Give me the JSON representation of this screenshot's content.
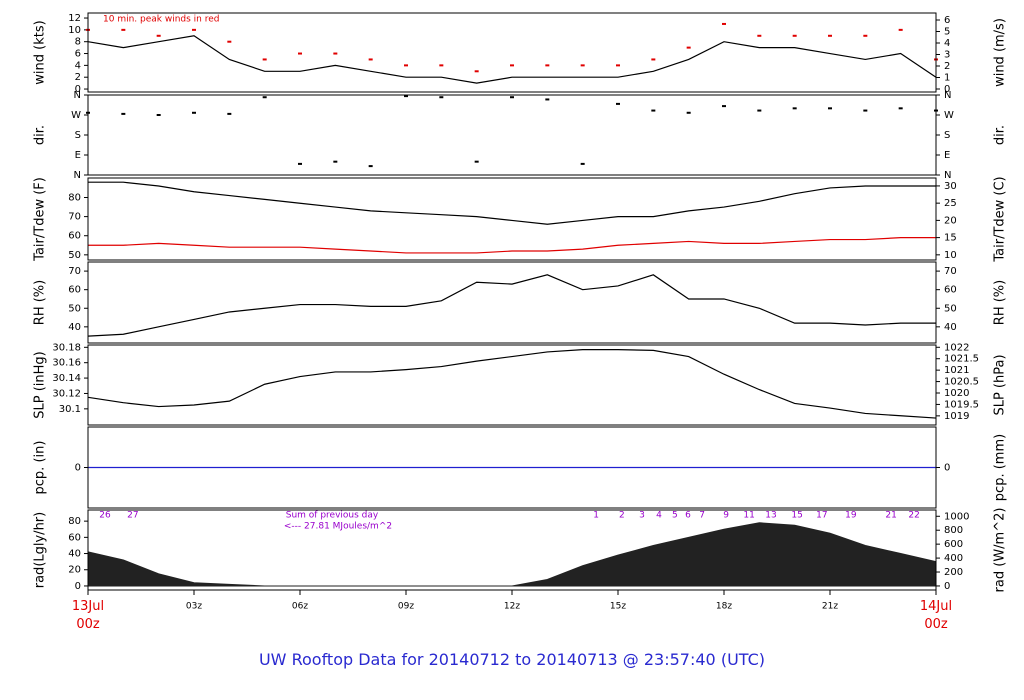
{
  "title": "UW Rooftop Data for 20140712  to  20140713 @ 23:57:40  (UTC)",
  "chart_data": [
    {
      "type": "line",
      "ylabel": "wind (kts)",
      "y2label": "wind (m/s)",
      "annotation": "10 min. peak winds in red",
      "xlim": [
        0,
        24
      ],
      "ylim": [
        -0.5,
        12.85
      ],
      "yticks": [
        0,
        2,
        4,
        6,
        8,
        10,
        12
      ],
      "y2lim": [
        -0.26,
        6.61
      ],
      "y2ticks": [
        0,
        1,
        2,
        3,
        4,
        5,
        6
      ],
      "x": [
        0,
        1,
        2,
        3,
        4,
        5,
        6,
        7,
        8,
        9,
        10,
        11,
        12,
        13,
        14,
        15,
        16,
        17,
        18,
        19,
        20,
        21,
        22,
        23,
        24
      ],
      "series": [
        {
          "name": "wind",
          "color": "#000000",
          "mode": "line",
          "values": [
            8,
            7,
            8,
            9,
            5,
            3,
            3,
            4,
            3,
            2,
            2,
            1,
            2,
            2,
            2,
            2,
            3,
            5,
            8,
            7,
            7,
            6,
            5,
            6,
            2
          ]
        },
        {
          "name": "peak",
          "color": "#e00000",
          "mode": "markers",
          "values": [
            10,
            10,
            9,
            10,
            8,
            5,
            6,
            6,
            5,
            4,
            4,
            3,
            4,
            4,
            4,
            4,
            5,
            7,
            11,
            9,
            9,
            9,
            9,
            10,
            5
          ]
        }
      ]
    },
    {
      "type": "scatter",
      "ylabel": "dir.",
      "y2label": "dir.",
      "xlim": [
        0,
        24
      ],
      "ylim": [
        0,
        360
      ],
      "yticks": [
        {
          "value": 360,
          "label": "N"
        },
        {
          "value": 270,
          "label": "W"
        },
        {
          "value": 180,
          "label": "S"
        },
        {
          "value": 90,
          "label": "E"
        },
        {
          "value": 0,
          "label": "N"
        }
      ],
      "y2lim": [
        0,
        360
      ],
      "y2ticks": [
        {
          "value": 360,
          "label": "N"
        },
        {
          "value": 270,
          "label": "W"
        },
        {
          "value": 180,
          "label": "S"
        },
        {
          "value": 90,
          "label": "E"
        },
        {
          "value": 0,
          "label": "N"
        }
      ],
      "x": [
        0,
        1,
        2,
        3,
        4,
        5,
        6,
        7,
        8,
        9,
        10,
        11,
        12,
        13,
        14,
        15,
        16,
        17,
        18,
        19,
        20,
        21,
        22,
        23,
        24
      ],
      "series": [
        {
          "name": "direction",
          "color": "#000000",
          "mode": "markers",
          "values": [
            280,
            275,
            270,
            280,
            275,
            350,
            50,
            60,
            40,
            355,
            350,
            60,
            350,
            340,
            50,
            320,
            290,
            280,
            310,
            290,
            300,
            300,
            290,
            300,
            290
          ]
        }
      ]
    },
    {
      "type": "line",
      "ylabel": "Tair/Tdew (F)",
      "y2label": "Tair/Tdew (C)",
      "xlim": [
        0,
        24
      ],
      "ylim": [
        47.3,
        90.2
      ],
      "yticks": [
        50,
        60,
        70,
        80
      ],
      "y2lim": [
        8.5,
        32.3
      ],
      "y2ticks": [
        10,
        15,
        20,
        25,
        30
      ],
      "x": [
        0,
        1,
        2,
        3,
        4,
        5,
        6,
        7,
        8,
        9,
        10,
        11,
        12,
        13,
        14,
        15,
        16,
        17,
        18,
        19,
        20,
        21,
        22,
        23,
        24
      ],
      "series": [
        {
          "name": "Tair",
          "color": "#000000",
          "mode": "line",
          "values": [
            88,
            88,
            86,
            83,
            81,
            79,
            77,
            75,
            73,
            72,
            71,
            70,
            68,
            66,
            68,
            70,
            70,
            73,
            75,
            78,
            82,
            85,
            86,
            86,
            86
          ]
        },
        {
          "name": "Tdew",
          "color": "#e00000",
          "mode": "line",
          "values": [
            55,
            55,
            56,
            55,
            54,
            54,
            54,
            53,
            52,
            51,
            51,
            51,
            52,
            52,
            53,
            55,
            56,
            57,
            56,
            56,
            57,
            58,
            58,
            59,
            59
          ]
        }
      ]
    },
    {
      "type": "line",
      "ylabel": "RH (%)",
      "y2label": "RH (%)",
      "xlim": [
        0,
        24
      ],
      "ylim": [
        31.3,
        74.9
      ],
      "yticks": [
        40,
        50,
        60,
        70
      ],
      "y2lim": [
        31.3,
        74.9
      ],
      "y2ticks": [
        40,
        50,
        60,
        70
      ],
      "x": [
        0,
        1,
        2,
        3,
        4,
        5,
        6,
        7,
        8,
        9,
        10,
        11,
        12,
        13,
        14,
        15,
        16,
        17,
        18,
        19,
        20,
        21,
        22,
        23,
        24
      ],
      "series": [
        {
          "name": "RH",
          "color": "#000000",
          "mode": "line",
          "values": [
            35,
            36,
            40,
            44,
            48,
            50,
            52,
            52,
            51,
            51,
            54,
            64,
            63,
            68,
            60,
            62,
            68,
            55,
            55,
            50,
            42,
            42,
            41,
            42,
            42
          ]
        }
      ]
    },
    {
      "type": "line",
      "ylabel": "SLP (inHg)",
      "y2label": "SLP (hPa)",
      "xlim": [
        0,
        24
      ],
      "ylim": [
        30.079,
        30.183
      ],
      "yticks": [
        30.1,
        30.12,
        30.14,
        30.16,
        30.18
      ],
      "y2lim": [
        1018.6,
        1022.1
      ],
      "y2ticks": [
        1019,
        1019.5,
        1020,
        1020.5,
        1021,
        1021.5,
        1022
      ],
      "x": [
        0,
        1,
        2,
        3,
        4,
        5,
        6,
        7,
        8,
        9,
        10,
        11,
        12,
        13,
        14,
        15,
        16,
        17,
        18,
        19,
        20,
        21,
        22,
        23,
        24
      ],
      "series": [
        {
          "name": "SLP",
          "color": "#000000",
          "mode": "line",
          "values": [
            30.115,
            30.108,
            30.103,
            30.105,
            30.11,
            30.132,
            30.142,
            30.148,
            30.148,
            30.151,
            30.155,
            30.162,
            30.168,
            30.174,
            30.177,
            30.177,
            30.176,
            30.168,
            30.145,
            30.125,
            30.107,
            30.101,
            30.094,
            30.091,
            30.088
          ]
        }
      ]
    },
    {
      "type": "line",
      "ylabel": "pcp. (in)",
      "y2label": "pcp. (mm)",
      "xlim": [
        0,
        24
      ],
      "ylim": [
        -1,
        1
      ],
      "yticks": [
        0
      ],
      "y2lim": [
        -25.4,
        25.4
      ],
      "y2ticks": [
        0
      ],
      "x": [
        0,
        1,
        2,
        3,
        4,
        5,
        6,
        7,
        8,
        9,
        10,
        11,
        12,
        13,
        14,
        15,
        16,
        17,
        18,
        19,
        20,
        21,
        22,
        23,
        24
      ],
      "series": [
        {
          "name": "pcp",
          "color": "#2020d0",
          "mode": "line",
          "values": [
            0,
            0,
            0,
            0,
            0,
            0,
            0,
            0,
            0,
            0,
            0,
            0,
            0,
            0,
            0,
            0,
            0,
            0,
            0,
            0,
            0,
            0,
            0,
            0,
            0
          ]
        }
      ]
    },
    {
      "type": "area",
      "ylabel": "rad(Lgly/hr)",
      "y2label": "rad (W/m^2)",
      "annotation": "Sum of previous day",
      "annotation2": "<--- 27.81 MJoules/m^2",
      "xlim": [
        0,
        24
      ],
      "ylim": [
        -5,
        93.75
      ],
      "yticks": [
        0,
        20,
        40,
        60,
        80
      ],
      "y2lim": [
        -58,
        1090
      ],
      "y2ticks": [
        0,
        200,
        400,
        600,
        800,
        1000
      ],
      "xticks": [
        {
          "value": 0,
          "label": "13Jul\n00z"
        },
        {
          "value": 3,
          "label": "03z"
        },
        {
          "value": 6,
          "label": "06z"
        },
        {
          "value": 9,
          "label": "09z"
        },
        {
          "value": 12,
          "label": "12z"
        },
        {
          "value": 15,
          "label": "15z"
        },
        {
          "value": 18,
          "label": "18z"
        },
        {
          "value": 21,
          "label": "21z"
        },
        {
          "value": 24,
          "label": "14Jul\n00z"
        }
      ],
      "hour_labels": [
        {
          "value": 0.48,
          "label": "26"
        },
        {
          "value": 1.27,
          "label": "27"
        },
        {
          "value": 14.38,
          "label": "1"
        },
        {
          "value": 15.11,
          "label": "2"
        },
        {
          "value": 15.68,
          "label": "3"
        },
        {
          "value": 16.16,
          "label": "4"
        },
        {
          "value": 16.61,
          "label": "5"
        },
        {
          "value": 16.98,
          "label": "6"
        },
        {
          "value": 17.38,
          "label": "7"
        },
        {
          "value": 18.06,
          "label": "9"
        },
        {
          "value": 18.71,
          "label": "11"
        },
        {
          "value": 19.33,
          "label": "13"
        },
        {
          "value": 20.07,
          "label": "15"
        },
        {
          "value": 20.77,
          "label": "17"
        },
        {
          "value": 21.59,
          "label": "19"
        },
        {
          "value": 22.73,
          "label": "21"
        },
        {
          "value": 23.38,
          "label": "22"
        }
      ],
      "x": [
        0,
        1,
        2,
        3,
        4,
        5,
        6,
        7,
        8,
        9,
        10,
        11,
        12,
        13,
        14,
        15,
        16,
        17,
        18,
        19,
        20,
        21,
        22,
        23,
        24
      ],
      "series": [
        {
          "name": "radiation",
          "color": "#222222",
          "mode": "area",
          "values": [
            42,
            32,
            15,
            4,
            2,
            0,
            0,
            0,
            0,
            0,
            0,
            0,
            0,
            8,
            25,
            38,
            50,
            60,
            70,
            78,
            75,
            65,
            50,
            40,
            30
          ]
        }
      ]
    }
  ]
}
